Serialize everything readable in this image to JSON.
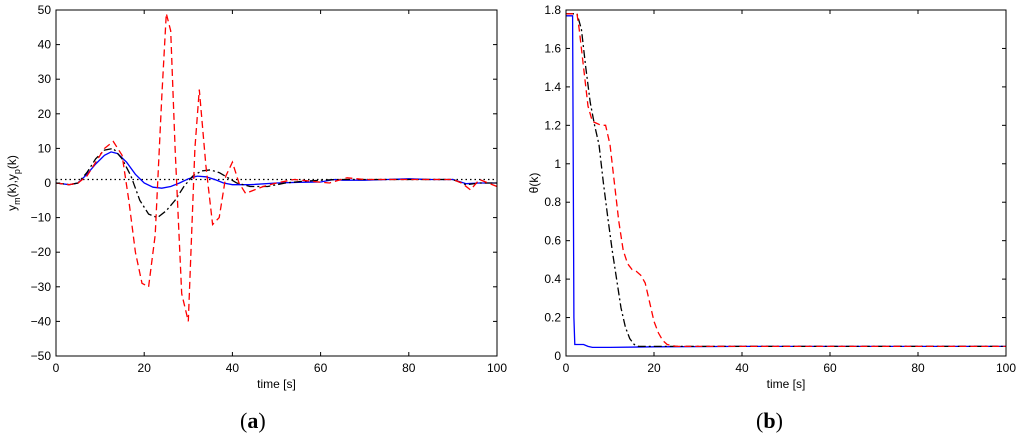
{
  "chart_data": [
    {
      "type": "line",
      "panel_label": "(a)",
      "panel_letter": "a",
      "xlabel": "time [s]",
      "ylabel_main": "y",
      "ylabel_sub1": "m",
      "ylabel_mid": "(k),y",
      "ylabel_sub2": "p",
      "ylabel_end": "(k)",
      "xlim": [
        0,
        100
      ],
      "ylim": [
        -50,
        50
      ],
      "xticks": [
        0,
        20,
        40,
        60,
        80,
        100
      ],
      "yticks": [
        -50,
        -40,
        -30,
        -20,
        -10,
        0,
        10,
        20,
        30,
        40,
        50
      ],
      "grid": false,
      "series": [
        {
          "color": "#000000",
          "style": "dotted",
          "x": [
            0,
            5,
            10,
            15,
            20,
            25,
            30,
            35,
            40,
            45,
            50,
            55,
            60,
            65,
            70,
            75,
            80,
            85,
            90,
            95,
            100
          ],
          "y": [
            1,
            1,
            1,
            1,
            1,
            1,
            1,
            1,
            1,
            1,
            1,
            1,
            1,
            1,
            1,
            1,
            1,
            1,
            1,
            1,
            1
          ]
        },
        {
          "color": "#0000ff",
          "style": "solid",
          "x": [
            0,
            3,
            5,
            7,
            9,
            11,
            12.5,
            14,
            16,
            18,
            20,
            22,
            24,
            26,
            28,
            30,
            32,
            34,
            36,
            38,
            40,
            44,
            50,
            55,
            60,
            63,
            65,
            70,
            75,
            80,
            85,
            90,
            93,
            96,
            100
          ],
          "y": [
            0,
            -0.5,
            0,
            2.5,
            5.5,
            8,
            9,
            8.5,
            6,
            2.5,
            0,
            -1.2,
            -1.5,
            -1,
            0,
            1.2,
            2,
            1.8,
            1,
            0,
            -0.5,
            -0.5,
            0,
            0.2,
            0.3,
            1,
            0.8,
            0.8,
            1,
            1.2,
            1,
            1,
            -0.2,
            0,
            0
          ]
        },
        {
          "color": "#000000",
          "style": "dashdot",
          "x": [
            0,
            3,
            5,
            7,
            9,
            11,
            13,
            15,
            17,
            19,
            21,
            23,
            25,
            27,
            29,
            31,
            33,
            35,
            37,
            39,
            41,
            44,
            48,
            52,
            56,
            60,
            64,
            70,
            76,
            80,
            85,
            90,
            93,
            96,
            100
          ],
          "y": [
            0,
            -0.5,
            0,
            3,
            7,
            9.5,
            10,
            7,
            2,
            -5,
            -9,
            -10,
            -8,
            -5,
            -1,
            2,
            3.5,
            3.8,
            3,
            1.5,
            0,
            -1,
            -1,
            0,
            0.5,
            0.8,
            1,
            1,
            1,
            1,
            1,
            1,
            -0.5,
            0,
            0
          ]
        },
        {
          "color": "#ff0000",
          "style": "dashed",
          "x": [
            0,
            3,
            5,
            7,
            9,
            11,
            13,
            15,
            16.5,
            18,
            19.5,
            21,
            22.5,
            24,
            25,
            26,
            27,
            28.5,
            30,
            31.5,
            32.5,
            34,
            35.5,
            37,
            38.5,
            40,
            41.5,
            43,
            45,
            47,
            50,
            54,
            58,
            62,
            66,
            70,
            75,
            80,
            85,
            88,
            90,
            92,
            94,
            96,
            98,
            100
          ],
          "y": [
            0,
            -0.5,
            0,
            2,
            6,
            10,
            12,
            8,
            -5,
            -20,
            -29,
            -30,
            -15,
            25,
            49,
            44,
            10,
            -32,
            -40,
            10,
            27,
            5,
            -12,
            -10,
            2,
            6,
            0,
            -3,
            -2,
            -1,
            0,
            1,
            0.5,
            0,
            1.5,
            1,
            1,
            1,
            1,
            1,
            1,
            0,
            -2,
            1,
            0,
            -1
          ]
        }
      ]
    },
    {
      "type": "line",
      "panel_label": "(b)",
      "panel_letter": "b",
      "xlabel": "time [s]",
      "ylabel": "θ(k)",
      "xlim": [
        0,
        100
      ],
      "ylim": [
        0,
        1.8
      ],
      "xticks": [
        0,
        20,
        40,
        60,
        80,
        100
      ],
      "yticks": [
        0,
        0.2,
        0.4,
        0.6,
        0.8,
        1,
        1.2,
        1.4,
        1.6,
        1.8
      ],
      "ytick_labels": [
        "0",
        "0.2",
        "0.4",
        "0.6",
        "0.8",
        "1",
        "1.2",
        "1.4",
        "1.6",
        "1.8"
      ],
      "grid": false,
      "series": [
        {
          "color": "#0000ff",
          "style": "solid",
          "x": [
            0,
            1.5,
            1.8,
            2,
            3,
            4,
            5,
            6,
            8,
            10,
            20,
            40,
            60,
            80,
            100
          ],
          "y": [
            1.77,
            1.77,
            0.2,
            0.06,
            0.06,
            0.06,
            0.05,
            0.045,
            0.045,
            0.045,
            0.048,
            0.05,
            0.05,
            0.05,
            0.05
          ]
        },
        {
          "color": "#000000",
          "style": "dashdot",
          "x": [
            0,
            1.5,
            2.5,
            3.5,
            4.5,
            5.5,
            6.5,
            7.5,
            8.5,
            9.5,
            10.5,
            11.5,
            12.5,
            13.5,
            14.5,
            15.5,
            16.5,
            18,
            20,
            25,
            40,
            60,
            80,
            100
          ],
          "y": [
            1.78,
            1.78,
            1.78,
            1.7,
            1.5,
            1.32,
            1.2,
            1.1,
            0.9,
            0.72,
            0.55,
            0.4,
            0.25,
            0.15,
            0.09,
            0.06,
            0.05,
            0.05,
            0.05,
            0.05,
            0.05,
            0.05,
            0.05,
            0.05
          ]
        },
        {
          "color": "#ff0000",
          "style": "dashed",
          "x": [
            0,
            1.5,
            2.5,
            3,
            4,
            5,
            6,
            7,
            8,
            9,
            10,
            11,
            12,
            13,
            14,
            15,
            16,
            17,
            18,
            19,
            20,
            21,
            22,
            23,
            24,
            25,
            27,
            30,
            40,
            60,
            80,
            100
          ],
          "y": [
            1.78,
            1.78,
            1.78,
            1.7,
            1.5,
            1.3,
            1.22,
            1.21,
            1.2,
            1.2,
            1.1,
            0.9,
            0.7,
            0.55,
            0.48,
            0.45,
            0.44,
            0.42,
            0.38,
            0.28,
            0.18,
            0.12,
            0.08,
            0.06,
            0.055,
            0.05,
            0.05,
            0.05,
            0.05,
            0.05,
            0.05,
            0.05
          ]
        }
      ]
    }
  ]
}
